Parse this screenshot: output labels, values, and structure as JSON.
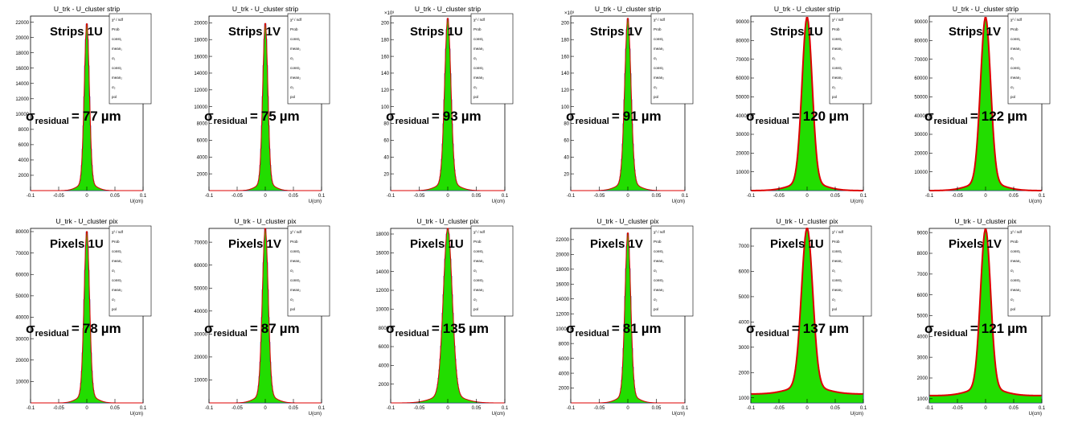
{
  "chart_data": [
    {
      "type": "histogram",
      "title": "U_trk - U_cluster strip",
      "detector_label": "Strips 1U",
      "residual_um": 77,
      "xlabel": "U(cm)",
      "xlim": [
        -0.1,
        0.1
      ],
      "y_exponent": "",
      "yticks": [
        2000,
        4000,
        6000,
        8000,
        10000,
        12000,
        14000,
        16000,
        18000,
        20000,
        22000
      ],
      "ylim": [
        0,
        22800
      ],
      "peak": 21000,
      "sigma_cm": 0.0045,
      "stats": [
        "χ² / ndf",
        "Prob",
        "const₁",
        "mean₁",
        "σ₁",
        "const₂",
        "mean₂",
        "σ₂",
        "pol"
      ]
    },
    {
      "type": "histogram",
      "title": "U_trk - U_cluster strip",
      "detector_label": "Strips 1V",
      "residual_um": 75,
      "xlabel": "U(cm)",
      "xlim": [
        -0.1,
        0.1
      ],
      "y_exponent": "",
      "yticks": [
        2000,
        4000,
        6000,
        8000,
        10000,
        12000,
        14000,
        16000,
        18000,
        20000
      ],
      "ylim": [
        0,
        20800
      ],
      "peak": 19200,
      "sigma_cm": 0.0045,
      "stats": [
        "χ² / ndf",
        "Prob",
        "const₁",
        "mean₁",
        "σ₁",
        "const₂",
        "mean₂",
        "σ₂",
        "pol"
      ]
    },
    {
      "type": "histogram",
      "title": "U_trk - U_cluster strip",
      "detector_label": "Strips 1U",
      "residual_um": 93,
      "xlabel": "U(cm)",
      "xlim": [
        -0.1,
        0.1
      ],
      "y_exponent": "×10³",
      "yticks": [
        20,
        40,
        60,
        80,
        100,
        120,
        140,
        160,
        180,
        200
      ],
      "ylim": [
        0,
        208
      ],
      "peak": 197,
      "sigma_cm": 0.0055,
      "stats": [
        "χ² / ndf",
        "Prob",
        "const₁",
        "mean₁",
        "σ₁",
        "const₂",
        "mean₂",
        "σ₂",
        "pol"
      ]
    },
    {
      "type": "histogram",
      "title": "U_trk - U_cluster strip",
      "detector_label": "Strips 1V",
      "residual_um": 91,
      "xlabel": "U(cm)",
      "xlim": [
        -0.1,
        0.1
      ],
      "y_exponent": "×10³",
      "yticks": [
        20,
        40,
        60,
        80,
        100,
        120,
        140,
        160,
        180,
        200
      ],
      "ylim": [
        0,
        208
      ],
      "peak": 197,
      "sigma_cm": 0.0055,
      "stats": [
        "χ² / ndf",
        "Prob",
        "const₁",
        "mean₁",
        "σ₁",
        "const₂",
        "mean₂",
        "σ₂",
        "pol"
      ]
    },
    {
      "type": "histogram",
      "title": "U_trk - U_cluster strip",
      "detector_label": "Strips 1U",
      "residual_um": 120,
      "xlabel": "U(cm)",
      "xlim": [
        -0.1,
        0.1
      ],
      "y_exponent": "",
      "yticks": [
        10000,
        20000,
        30000,
        40000,
        50000,
        60000,
        70000,
        80000,
        90000
      ],
      "ylim": [
        0,
        93000
      ],
      "peak": 88000,
      "sigma_cm": 0.009,
      "stats": [
        "χ² / ndf",
        "Prob",
        "const₁",
        "mean₁",
        "σ₁",
        "const₂",
        "mean₂",
        "σ₂",
        "pol"
      ]
    },
    {
      "type": "histogram",
      "title": "U_trk - U_cluster strip",
      "detector_label": "Strips 1V",
      "residual_um": 122,
      "xlabel": "U(cm)",
      "xlim": [
        -0.1,
        0.1
      ],
      "y_exponent": "",
      "yticks": [
        10000,
        20000,
        30000,
        40000,
        50000,
        60000,
        70000,
        80000,
        90000
      ],
      "ylim": [
        0,
        93000
      ],
      "peak": 88000,
      "sigma_cm": 0.009,
      "stats": [
        "χ² / ndf",
        "Prob",
        "const₁",
        "mean₁",
        "σ₁",
        "const₂",
        "mean₂",
        "σ₂",
        "pol"
      ]
    },
    {
      "type": "histogram",
      "title": "U_trk - U_cluster pix",
      "detector_label": "Pixels 1U",
      "residual_um": 78,
      "xlabel": "U(cm)",
      "xlim": [
        -0.1,
        0.1
      ],
      "y_exponent": "",
      "yticks": [
        10000,
        20000,
        30000,
        40000,
        50000,
        60000,
        70000,
        80000
      ],
      "ylim": [
        0,
        81500
      ],
      "peak": 77000,
      "sigma_cm": 0.0048,
      "stats": [
        "χ² / ndf",
        "Prob",
        "const₁",
        "mean₁",
        "σ₁",
        "const₂",
        "mean₂",
        "σ₂",
        "pol"
      ]
    },
    {
      "type": "histogram",
      "title": "U_trk - U_cluster pix",
      "detector_label": "Pixels 1V",
      "residual_um": 87,
      "xlabel": "U(cm)",
      "xlim": [
        -0.1,
        0.1
      ],
      "y_exponent": "",
      "yticks": [
        10000,
        20000,
        30000,
        40000,
        50000,
        60000,
        70000
      ],
      "ylim": [
        0,
        76000
      ],
      "peak": 73000,
      "sigma_cm": 0.0052,
      "stats": [
        "χ² / ndf",
        "Prob",
        "const₁",
        "mean₁",
        "σ₁",
        "const₂",
        "mean₂",
        "σ₂",
        "pol"
      ]
    },
    {
      "type": "histogram",
      "title": "U_trk - U_cluster pix",
      "detector_label": "Pixels 1U",
      "residual_um": 135,
      "xlabel": "U(cm)",
      "xlim": [
        -0.1,
        0.1
      ],
      "y_exponent": "",
      "yticks": [
        2000,
        4000,
        6000,
        8000,
        10000,
        12000,
        14000,
        16000,
        18000
      ],
      "ylim": [
        0,
        18600
      ],
      "peak": 17800,
      "sigma_cm": 0.0078,
      "stats": [
        "χ² / ndf",
        "Prob",
        "const₁",
        "mean₁",
        "σ₁",
        "const₂",
        "mean₂",
        "σ₂",
        "pol"
      ]
    },
    {
      "type": "histogram",
      "title": "U_trk - U_cluster pix",
      "detector_label": "Pixels 1V",
      "residual_um": 81,
      "xlabel": "U(cm)",
      "xlim": [
        -0.1,
        0.1
      ],
      "y_exponent": "",
      "yticks": [
        2000,
        4000,
        6000,
        8000,
        10000,
        12000,
        14000,
        16000,
        18000,
        20000,
        22000
      ],
      "ylim": [
        0,
        23500
      ],
      "peak": 22000,
      "sigma_cm": 0.005,
      "stats": [
        "χ² / ndf",
        "Prob",
        "const₁",
        "mean₁",
        "σ₁",
        "const₂",
        "mean₂",
        "σ₂",
        "pol"
      ]
    },
    {
      "type": "histogram",
      "title": "U_trk - U_cluster pix",
      "detector_label": "Pixels 1U",
      "residual_um": 137,
      "xlabel": "U(cm)",
      "xlim": [
        -0.1,
        0.1
      ],
      "y_exponent": "",
      "yticks": [
        1000,
        2000,
        3000,
        4000,
        5000,
        6000,
        7000
      ],
      "ylim": [
        800,
        7700
      ],
      "peak": 7400,
      "baseline": 1150,
      "sigma_cm": 0.01,
      "stats": [
        "χ² / ndf",
        "Prob",
        "const₁",
        "mean₁",
        "σ₁",
        "const₂",
        "mean₂",
        "σ₂",
        "pol"
      ]
    },
    {
      "type": "histogram",
      "title": "U_trk - U_cluster pix",
      "detector_label": "Pixels 1V",
      "residual_um": 121,
      "xlabel": "U(cm)",
      "xlim": [
        -0.1,
        0.1
      ],
      "y_exponent": "",
      "yticks": [
        1000,
        2000,
        3000,
        4000,
        5000,
        6000,
        7000,
        8000,
        9000
      ],
      "ylim": [
        800,
        9200
      ],
      "peak": 8800,
      "baseline": 1150,
      "sigma_cm": 0.009,
      "stats": [
        "χ² / ndf",
        "Prob",
        "const₁",
        "mean₁",
        "σ₁",
        "const₂",
        "mean₂",
        "σ₂",
        "pol"
      ]
    }
  ],
  "labels": {
    "sigma_symbol": "σ",
    "sigma_subscript": "residual",
    "equals": "=",
    "unit": "µm"
  },
  "colors": {
    "histogram_fill": "#22dd00",
    "histogram_edge": "#1133aa",
    "fit_line": "#dd0000",
    "axis": "#000000"
  },
  "xticks": [
    -0.1,
    -0.05,
    0,
    0.05,
    0.1
  ]
}
